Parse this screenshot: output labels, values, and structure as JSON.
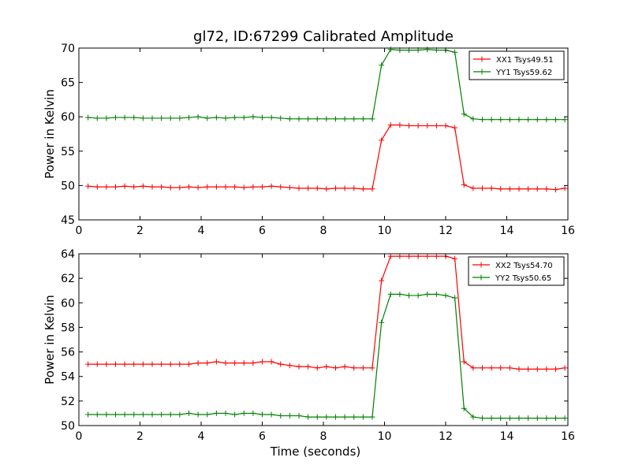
{
  "title": "gl72, ID:67299 Calibrated Amplitude",
  "colors": {
    "red": "#ff0000",
    "green": "#008000"
  },
  "chart_data": [
    {
      "type": "line",
      "ylabel": "Power in Kelvin",
      "xlabel": "",
      "xlim": [
        0,
        16
      ],
      "ylim": [
        45,
        70
      ],
      "xticks": [
        0,
        2,
        4,
        6,
        8,
        10,
        12,
        14,
        16
      ],
      "yticks": [
        45,
        50,
        55,
        60,
        65,
        70
      ],
      "grid": false,
      "legend": "top-right",
      "x": [
        0.3,
        0.6,
        0.9,
        1.2,
        1.5,
        1.8,
        2.1,
        2.4,
        2.7,
        3.0,
        3.3,
        3.6,
        3.9,
        4.2,
        4.5,
        4.8,
        5.1,
        5.4,
        5.7,
        6.0,
        6.3,
        6.6,
        6.9,
        7.2,
        7.5,
        7.8,
        8.1,
        8.4,
        8.7,
        9.0,
        9.3,
        9.6,
        9.9,
        10.2,
        10.5,
        10.8,
        11.1,
        11.4,
        11.7,
        12.0,
        12.3,
        12.6,
        12.9,
        13.2,
        13.5,
        13.8,
        14.1,
        14.4,
        14.7,
        15.0,
        15.3,
        15.6,
        15.9
      ],
      "series": [
        {
          "name": "XX1 Tsys49.51",
          "color": "red",
          "values": [
            49.9,
            49.8,
            49.8,
            49.8,
            49.9,
            49.8,
            49.9,
            49.8,
            49.8,
            49.7,
            49.7,
            49.8,
            49.7,
            49.8,
            49.8,
            49.8,
            49.8,
            49.7,
            49.8,
            49.8,
            49.9,
            49.8,
            49.7,
            49.6,
            49.6,
            49.6,
            49.5,
            49.6,
            49.6,
            49.6,
            49.5,
            49.5,
            56.6,
            58.8,
            58.8,
            58.7,
            58.7,
            58.7,
            58.7,
            58.7,
            58.4,
            50.1,
            49.6,
            49.6,
            49.6,
            49.5,
            49.5,
            49.5,
            49.5,
            49.5,
            49.5,
            49.4,
            49.6
          ]
        },
        {
          "name": "YY1 Tsys59.62",
          "color": "green",
          "values": [
            59.9,
            59.8,
            59.8,
            59.9,
            59.9,
            59.9,
            59.8,
            59.8,
            59.8,
            59.8,
            59.8,
            59.9,
            60.0,
            59.8,
            59.9,
            59.8,
            59.9,
            59.9,
            60.0,
            59.9,
            59.9,
            59.8,
            59.7,
            59.7,
            59.7,
            59.7,
            59.7,
            59.7,
            59.7,
            59.7,
            59.7,
            59.7,
            67.5,
            69.8,
            69.7,
            69.7,
            69.7,
            69.8,
            69.7,
            69.7,
            69.4,
            60.4,
            59.7,
            59.6,
            59.6,
            59.6,
            59.6,
            59.6,
            59.6,
            59.6,
            59.6,
            59.6,
            59.6
          ]
        }
      ]
    },
    {
      "type": "line",
      "ylabel": "Power in Kelvin",
      "xlabel": "Time (seconds)",
      "xlim": [
        0,
        16
      ],
      "ylim": [
        50,
        64
      ],
      "xticks": [
        0,
        2,
        4,
        6,
        8,
        10,
        12,
        14,
        16
      ],
      "yticks": [
        50,
        52,
        54,
        56,
        58,
        60,
        62,
        64
      ],
      "grid": false,
      "legend": "top-right",
      "x": [
        0.3,
        0.6,
        0.9,
        1.2,
        1.5,
        1.8,
        2.1,
        2.4,
        2.7,
        3.0,
        3.3,
        3.6,
        3.9,
        4.2,
        4.5,
        4.8,
        5.1,
        5.4,
        5.7,
        6.0,
        6.3,
        6.6,
        6.9,
        7.2,
        7.5,
        7.8,
        8.1,
        8.4,
        8.7,
        9.0,
        9.3,
        9.6,
        9.9,
        10.2,
        10.5,
        10.8,
        11.1,
        11.4,
        11.7,
        12.0,
        12.3,
        12.6,
        12.9,
        13.2,
        13.5,
        13.8,
        14.1,
        14.4,
        14.7,
        15.0,
        15.3,
        15.6,
        15.9
      ],
      "series": [
        {
          "name": "XX2 Tsys54.70",
          "color": "red",
          "values": [
            55.0,
            55.0,
            55.0,
            55.0,
            55.0,
            55.0,
            55.0,
            55.0,
            55.0,
            55.0,
            55.0,
            55.0,
            55.1,
            55.1,
            55.2,
            55.1,
            55.1,
            55.1,
            55.1,
            55.2,
            55.2,
            55.0,
            54.9,
            54.8,
            54.8,
            54.7,
            54.8,
            54.7,
            54.8,
            54.7,
            54.7,
            54.7,
            61.8,
            63.8,
            63.8,
            63.8,
            63.8,
            63.8,
            63.8,
            63.8,
            63.6,
            55.2,
            54.7,
            54.7,
            54.7,
            54.7,
            54.7,
            54.6,
            54.6,
            54.6,
            54.6,
            54.6,
            54.7
          ]
        },
        {
          "name": "YY2 Tsys50.65",
          "color": "green",
          "values": [
            50.9,
            50.9,
            50.9,
            50.9,
            50.9,
            50.9,
            50.9,
            50.9,
            50.9,
            50.9,
            50.9,
            51.0,
            50.9,
            50.9,
            51.0,
            51.0,
            50.9,
            51.0,
            51.0,
            50.9,
            50.9,
            50.8,
            50.8,
            50.8,
            50.7,
            50.7,
            50.7,
            50.7,
            50.7,
            50.7,
            50.7,
            50.7,
            58.4,
            60.7,
            60.7,
            60.6,
            60.6,
            60.7,
            60.7,
            60.6,
            60.4,
            51.4,
            50.7,
            50.6,
            50.6,
            50.6,
            50.6,
            50.6,
            50.6,
            50.6,
            50.6,
            50.6,
            50.6
          ]
        }
      ]
    }
  ]
}
